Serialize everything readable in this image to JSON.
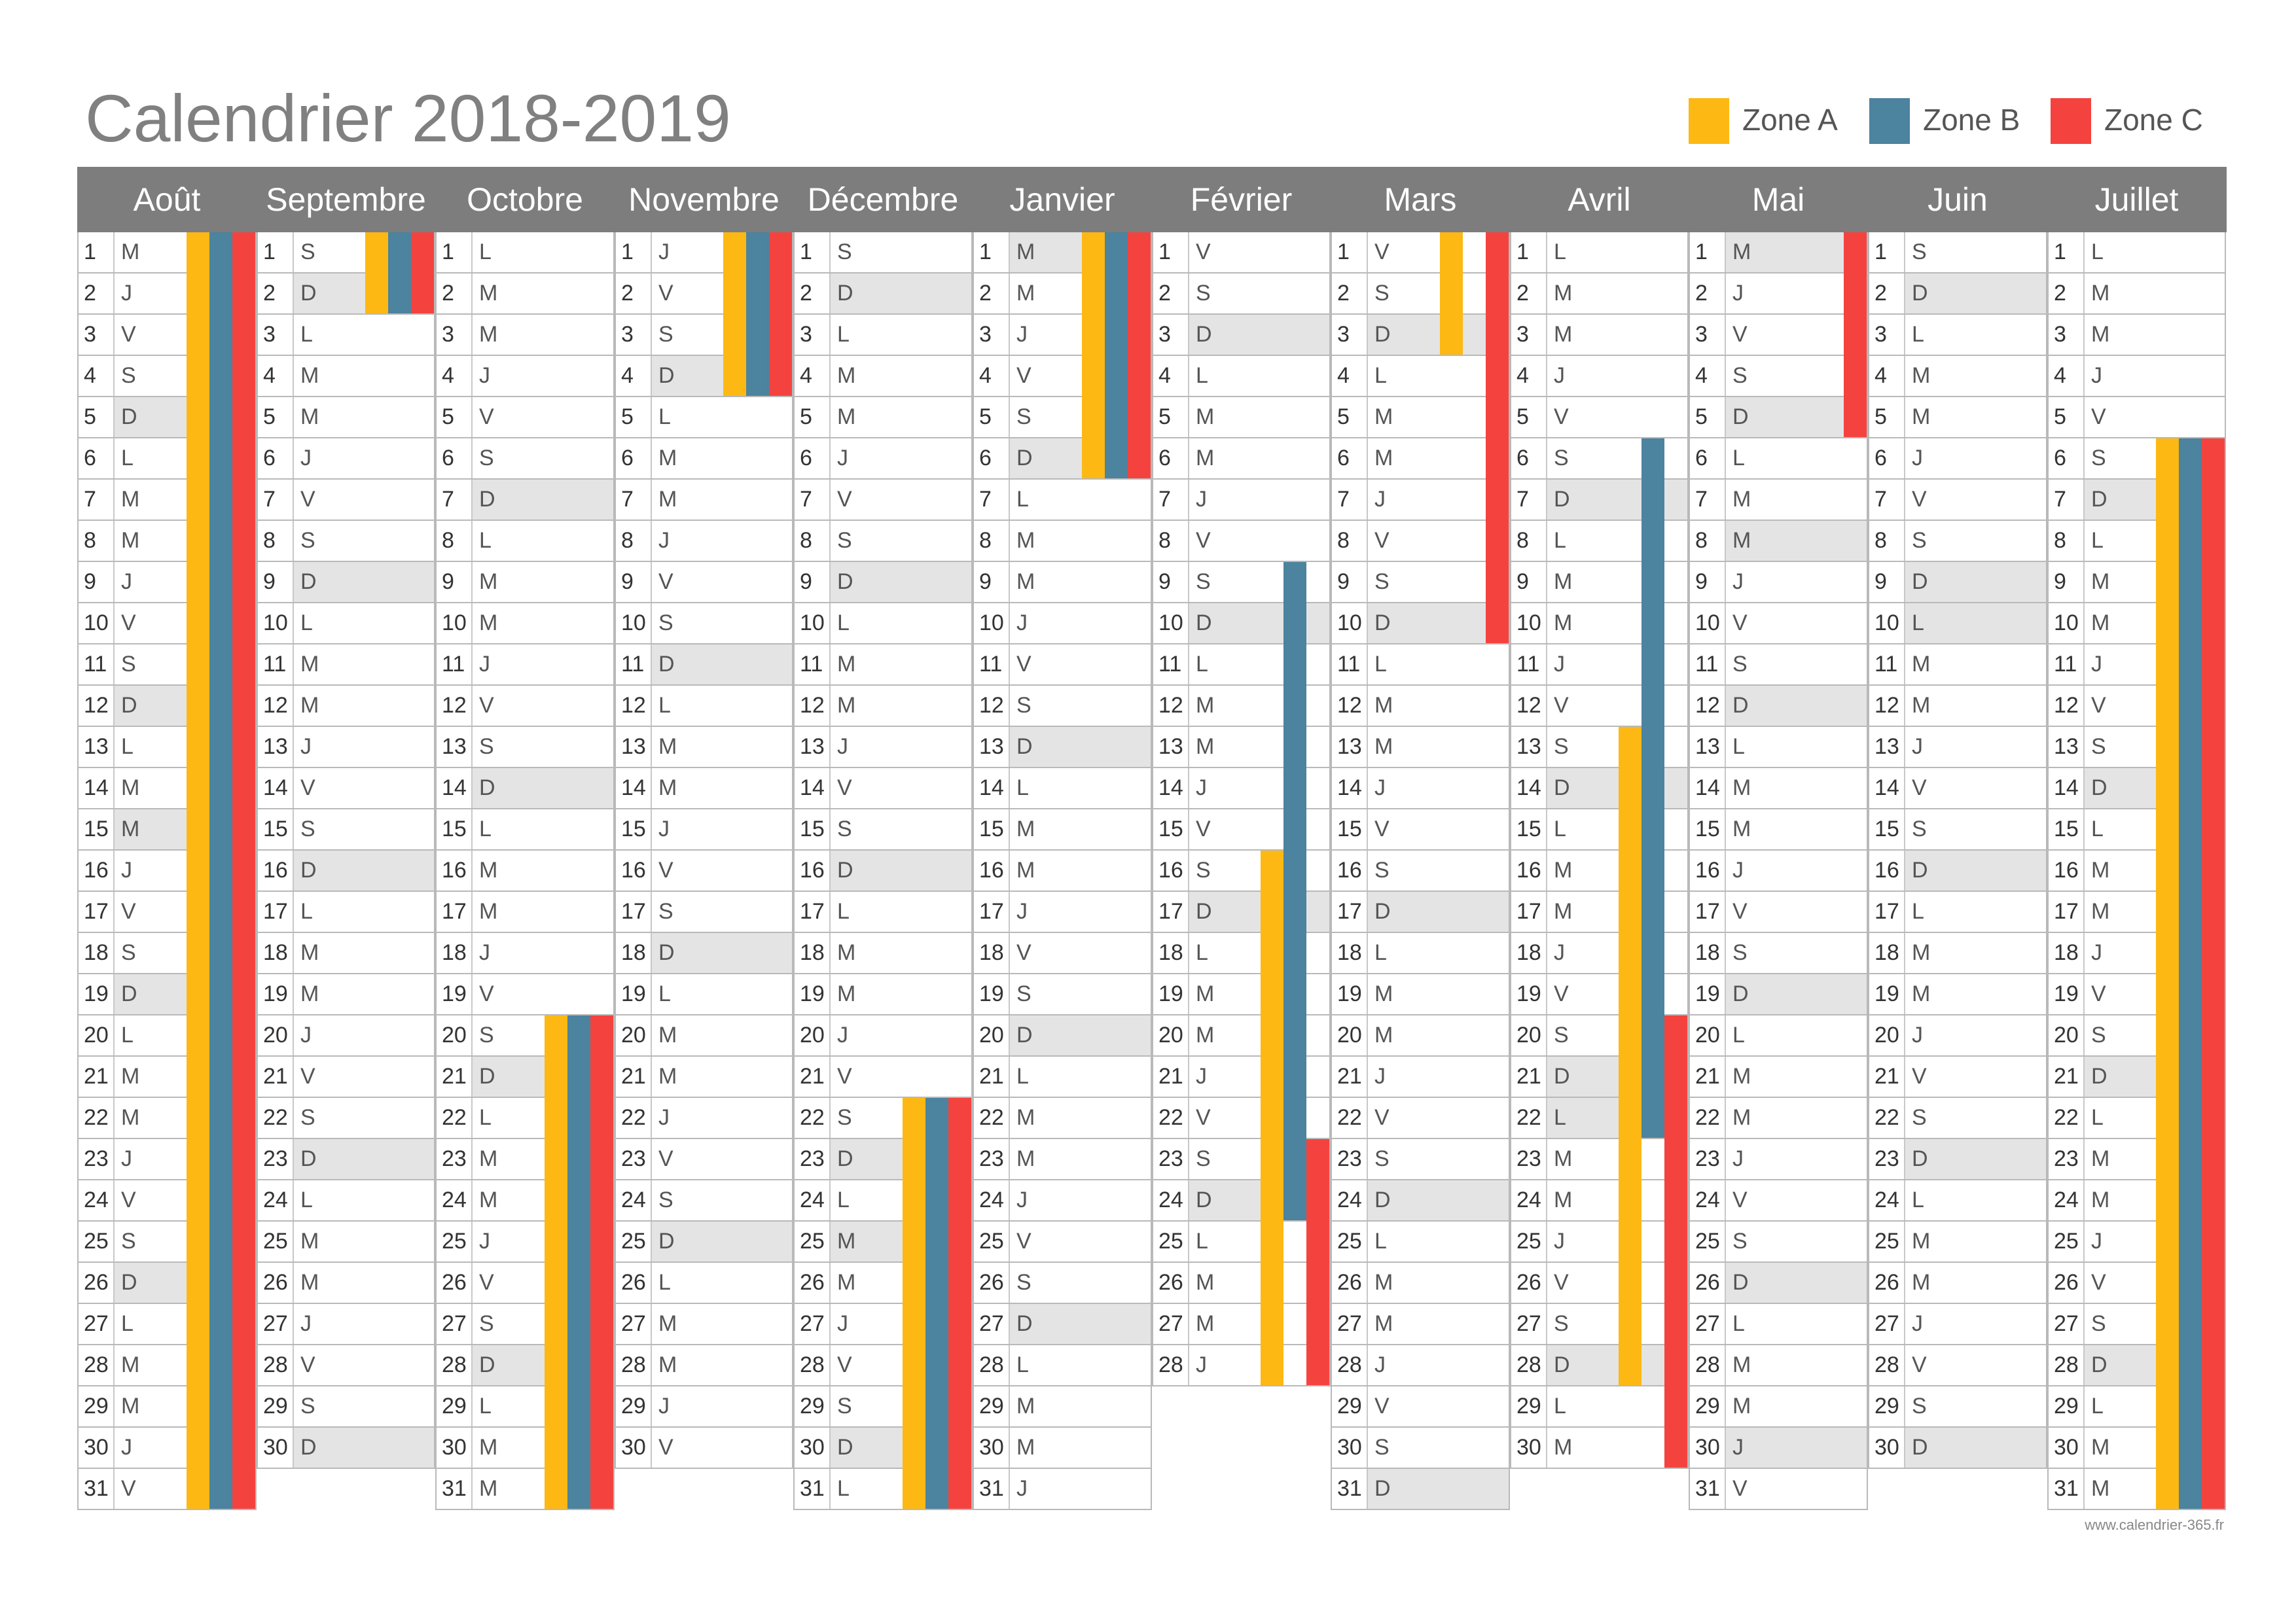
{
  "title": "Calendrier 2018-2019",
  "legend": [
    {
      "label": "Zone A",
      "color": "#FDB813"
    },
    {
      "label": "Zone B",
      "color": "#4C839E"
    },
    {
      "label": "Zone C",
      "color": "#F4433F"
    }
  ],
  "weekend_shade": "#e4e4e4",
  "months": [
    {
      "name": "Août",
      "days": 31,
      "first_weekday": 2,
      "extra_shaded": [
        15
      ],
      "holidays": {
        "A": [
          [
            1,
            31
          ]
        ],
        "B": [
          [
            1,
            31
          ]
        ],
        "C": [
          [
            1,
            31
          ]
        ]
      }
    },
    {
      "name": "Septembre",
      "days": 30,
      "first_weekday": 5,
      "extra_shaded": [],
      "holidays": {
        "A": [
          [
            1,
            2
          ]
        ],
        "B": [
          [
            1,
            2
          ]
        ],
        "C": [
          [
            1,
            2
          ]
        ]
      }
    },
    {
      "name": "Octobre",
      "days": 31,
      "first_weekday": 0,
      "extra_shaded": [],
      "holidays": {
        "A": [
          [
            20,
            31
          ]
        ],
        "B": [
          [
            20,
            31
          ]
        ],
        "C": [
          [
            20,
            31
          ]
        ]
      }
    },
    {
      "name": "Novembre",
      "days": 30,
      "first_weekday": 3,
      "extra_shaded": [],
      "holidays": {
        "A": [
          [
            1,
            4
          ]
        ],
        "B": [
          [
            1,
            4
          ]
        ],
        "C": [
          [
            1,
            4
          ]
        ]
      }
    },
    {
      "name": "Décembre",
      "days": 31,
      "first_weekday": 5,
      "extra_shaded": [
        25
      ],
      "holidays": {
        "A": [
          [
            22,
            31
          ]
        ],
        "B": [
          [
            22,
            31
          ]
        ],
        "C": [
          [
            22,
            31
          ]
        ]
      }
    },
    {
      "name": "Janvier",
      "days": 31,
      "first_weekday": 1,
      "extra_shaded": [
        1
      ],
      "holidays": {
        "A": [
          [
            1,
            6
          ]
        ],
        "B": [
          [
            1,
            6
          ]
        ],
        "C": [
          [
            1,
            6
          ]
        ]
      }
    },
    {
      "name": "Février",
      "days": 28,
      "first_weekday": 4,
      "extra_shaded": [],
      "holidays": {
        "A": [
          [
            16,
            28
          ]
        ],
        "B": [
          [
            9,
            24
          ]
        ],
        "C": [
          [
            23,
            28
          ]
        ]
      }
    },
    {
      "name": "Mars",
      "days": 31,
      "first_weekday": 4,
      "extra_shaded": [],
      "holidays": {
        "A": [
          [
            1,
            3
          ]
        ],
        "B": [],
        "C": [
          [
            1,
            10
          ]
        ]
      }
    },
    {
      "name": "Avril",
      "days": 30,
      "first_weekday": 0,
      "extra_shaded": [
        22
      ],
      "holidays": {
        "A": [
          [
            13,
            28
          ]
        ],
        "B": [
          [
            6,
            22
          ]
        ],
        "C": [
          [
            20,
            30
          ]
        ]
      }
    },
    {
      "name": "Mai",
      "days": 31,
      "first_weekday": 2,
      "extra_shaded": [
        1,
        8,
        30
      ],
      "holidays": {
        "A": [],
        "B": [],
        "C": [
          [
            1,
            5
          ]
        ]
      }
    },
    {
      "name": "Juin",
      "days": 30,
      "first_weekday": 5,
      "extra_shaded": [
        10
      ],
      "holidays": {
        "A": [],
        "B": [],
        "C": []
      }
    },
    {
      "name": "Juillet",
      "days": 31,
      "first_weekday": 0,
      "extra_shaded": [],
      "holidays": {
        "A": [
          [
            6,
            31
          ]
        ],
        "B": [
          [
            6,
            31
          ]
        ],
        "C": [
          [
            6,
            31
          ]
        ]
      }
    }
  ],
  "day_letters": [
    "L",
    "M",
    "M",
    "J",
    "V",
    "S",
    "D"
  ],
  "footer_note": "www.calendrier-365.fr"
}
